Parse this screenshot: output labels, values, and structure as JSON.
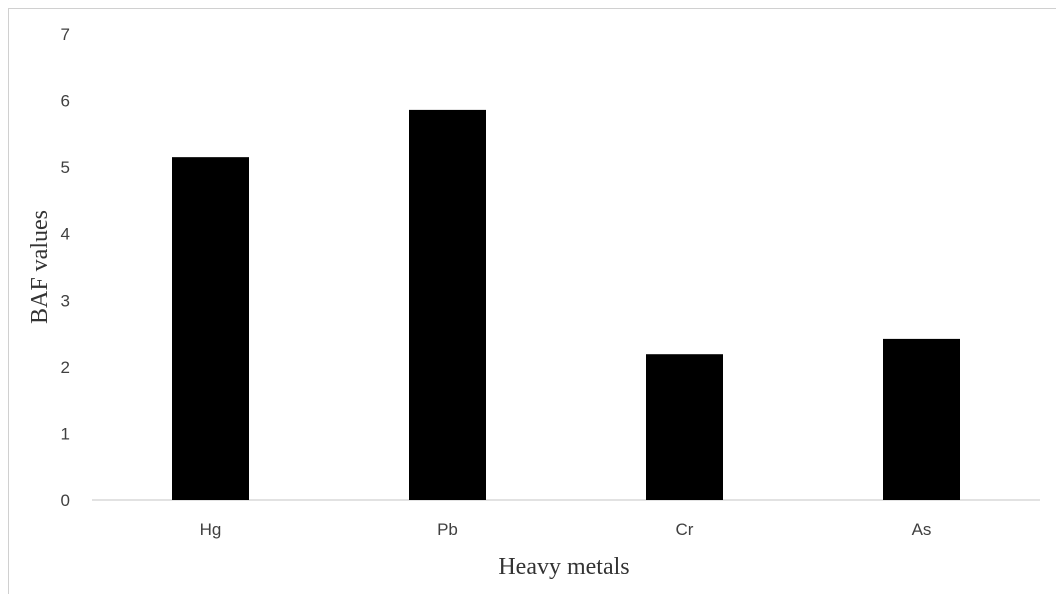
{
  "chart_data": {
    "type": "bar",
    "categories": [
      "Hg",
      "Pb",
      "Cr",
      "As"
    ],
    "values": [
      5.15,
      5.86,
      2.19,
      2.42
    ],
    "title": "",
    "xlabel": "Heavy metals",
    "ylabel": "BAF values",
    "ylim": [
      0,
      7
    ],
    "yticks": [
      "0",
      "1",
      "2",
      "3",
      "4",
      "5",
      "6",
      "7"
    ],
    "grid": false,
    "legend": "none",
    "bar_color": "#000000",
    "axis_color": "#d9d9d9"
  }
}
